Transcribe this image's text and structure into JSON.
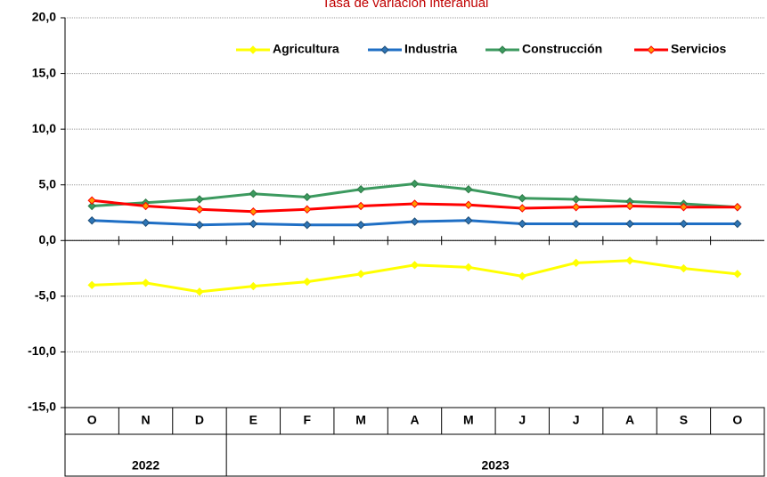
{
  "chart_data": {
    "type": "line",
    "title": "Tasa de variación interanual",
    "categories": [
      "O",
      "N",
      "D",
      "E",
      "F",
      "M",
      "A",
      "M",
      "J",
      "J",
      "A",
      "S",
      "O"
    ],
    "category_groups": [
      {
        "label": "2022",
        "count": 3
      },
      {
        "label": "2023",
        "count": 10
      }
    ],
    "series": [
      {
        "name": "Agricultura",
        "color": "#ffff00",
        "values": [
          -4.0,
          -3.8,
          -4.6,
          -4.1,
          -3.7,
          -3.0,
          -2.2,
          -2.4,
          -3.2,
          -2.0,
          -1.8,
          -2.5,
          -3.0
        ]
      },
      {
        "name": "Industria",
        "color": "#1f6fc5",
        "values": [
          1.8,
          1.6,
          1.4,
          1.5,
          1.4,
          1.4,
          1.7,
          1.8,
          1.5,
          1.5,
          1.5,
          1.5,
          1.5
        ]
      },
      {
        "name": "Construcción",
        "color": "#3c9a5f",
        "values": [
          3.1,
          3.4,
          3.7,
          4.2,
          3.9,
          4.6,
          5.1,
          4.6,
          3.8,
          3.7,
          3.5,
          3.3,
          3.0
        ]
      },
      {
        "name": "Servicios",
        "color": "#ff0000",
        "values": [
          3.6,
          3.1,
          2.8,
          2.6,
          2.8,
          3.1,
          3.3,
          3.2,
          2.9,
          3.0,
          3.1,
          3.0,
          3.0
        ]
      }
    ],
    "ylim": [
      -15,
      20
    ],
    "yticks": [
      {
        "value": -15,
        "label": "-15,0"
      },
      {
        "value": -10,
        "label": "-10,0"
      },
      {
        "value": -5,
        "label": "-5,0"
      },
      {
        "value": 0,
        "label": "0,0"
      },
      {
        "value": 5,
        "label": "5,0"
      },
      {
        "value": 10,
        "label": "10,0"
      },
      {
        "value": 15,
        "label": "15,0"
      },
      {
        "value": 20,
        "label": "20,0"
      }
    ],
    "grid": true,
    "legend": "top"
  }
}
